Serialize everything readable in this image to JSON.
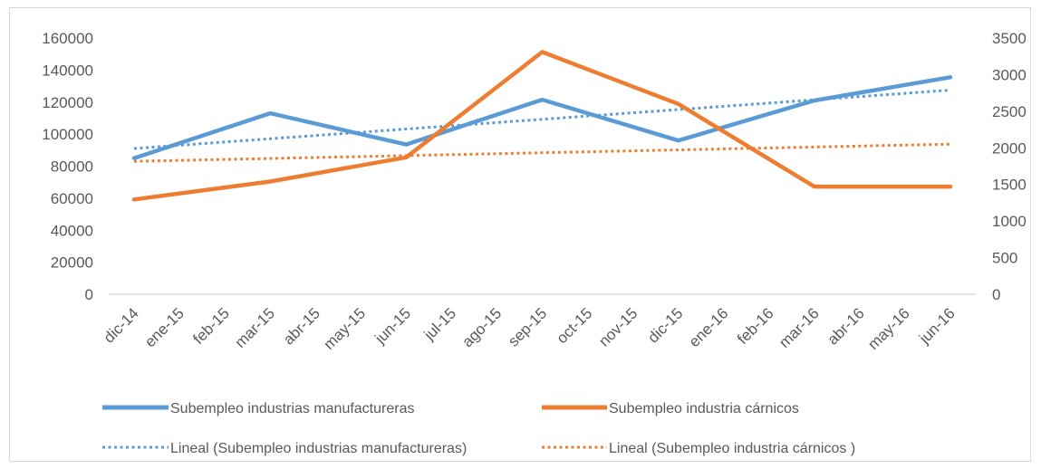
{
  "chart_data": {
    "type": "line",
    "categories": [
      "dic-14",
      "ene-15",
      "feb-15",
      "mar-15",
      "abr-15",
      "may-15",
      "jun-15",
      "jul-15",
      "ago-15",
      "sep-15",
      "oct-15",
      "nov-15",
      "dic-15",
      "ene-16",
      "feb-16",
      "mar-16",
      "abr-16",
      "may-16",
      "jun-16"
    ],
    "y_left": {
      "ylim": [
        0,
        160000
      ],
      "ticks": [
        "0",
        "20000",
        "40000",
        "60000",
        "80000",
        "100000",
        "120000",
        "140000",
        "160000"
      ]
    },
    "y_right": {
      "ylim": [
        0,
        3500
      ],
      "ticks": [
        "0",
        "500",
        "1000",
        "1500",
        "2000",
        "2500",
        "3000",
        "3500"
      ]
    },
    "grid": false,
    "legend_position": "bottom",
    "series": [
      {
        "name": "Subempleo industrias manufactureras",
        "axis": "left",
        "color": "#5b9bd5",
        "style": "solid",
        "points": [
          [
            0,
            85000
          ],
          [
            3,
            113000
          ],
          [
            6,
            93500
          ],
          [
            9,
            121500
          ],
          [
            12,
            96000
          ],
          [
            15,
            121000
          ],
          [
            18,
            135500
          ]
        ]
      },
      {
        "name": "Subempleo industria cárnicos",
        "axis": "right",
        "color": "#ed7d31",
        "style": "solid",
        "points": [
          [
            0,
            1295
          ],
          [
            3,
            1540
          ],
          [
            6,
            1870
          ],
          [
            9,
            3310
          ],
          [
            12,
            2600
          ],
          [
            15,
            1470
          ],
          [
            18,
            1470
          ]
        ]
      },
      {
        "name": "Lineal (Subempleo industrias manufactureras)",
        "axis": "left",
        "color": "#5b9bd5",
        "style": "dotted",
        "points": [
          [
            0,
            91000
          ],
          [
            18,
            127500
          ]
        ]
      },
      {
        "name": "Lineal (Subempleo industria cárnicos )",
        "axis": "right",
        "color": "#ed7d31",
        "style": "dotted",
        "points": [
          [
            0,
            1815
          ],
          [
            18,
            2050
          ]
        ]
      }
    ]
  }
}
